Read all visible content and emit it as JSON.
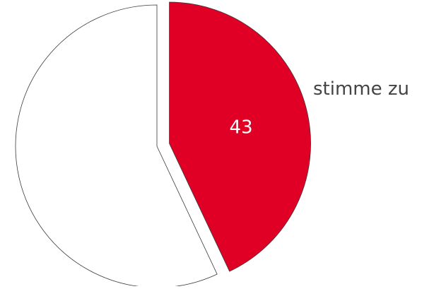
{
  "chart_data": {
    "type": "pie",
    "title": "",
    "series": [
      {
        "values": [
          43,
          57
        ],
        "labels": [
          "stimme zu",
          ""
        ],
        "colors": [
          "#e00025",
          "#ffffff"
        ],
        "data_labels": [
          "43",
          ""
        ]
      }
    ],
    "start_angle_deg": 0,
    "direction": "clockwise",
    "exploded_slice_index": 0
  },
  "colors": {
    "slice_stroke": "#3a3a3a",
    "data_label_text": "#ffffff",
    "legend_text": "#444444"
  }
}
